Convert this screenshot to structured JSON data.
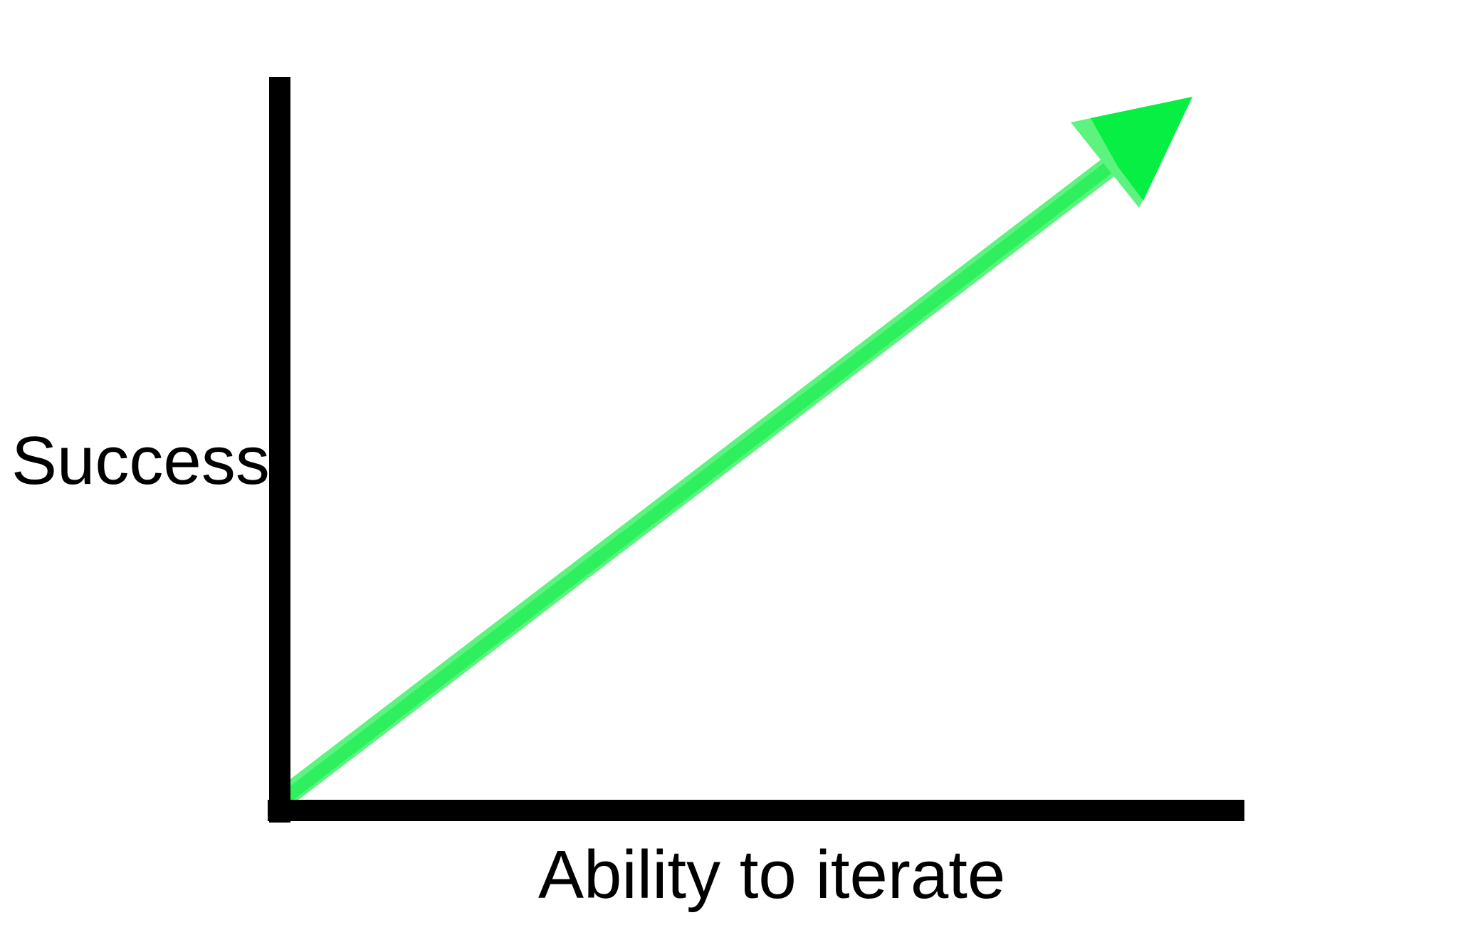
{
  "diagram": {
    "y_axis_label": "Success",
    "x_axis_label": "Ability to iterate",
    "colors": {
      "axis": "#000000",
      "arrow_light": "#5cf37f",
      "arrow_main": "#2ef05f",
      "arrow_head": "#08ef44",
      "background": "#ffffff"
    }
  }
}
